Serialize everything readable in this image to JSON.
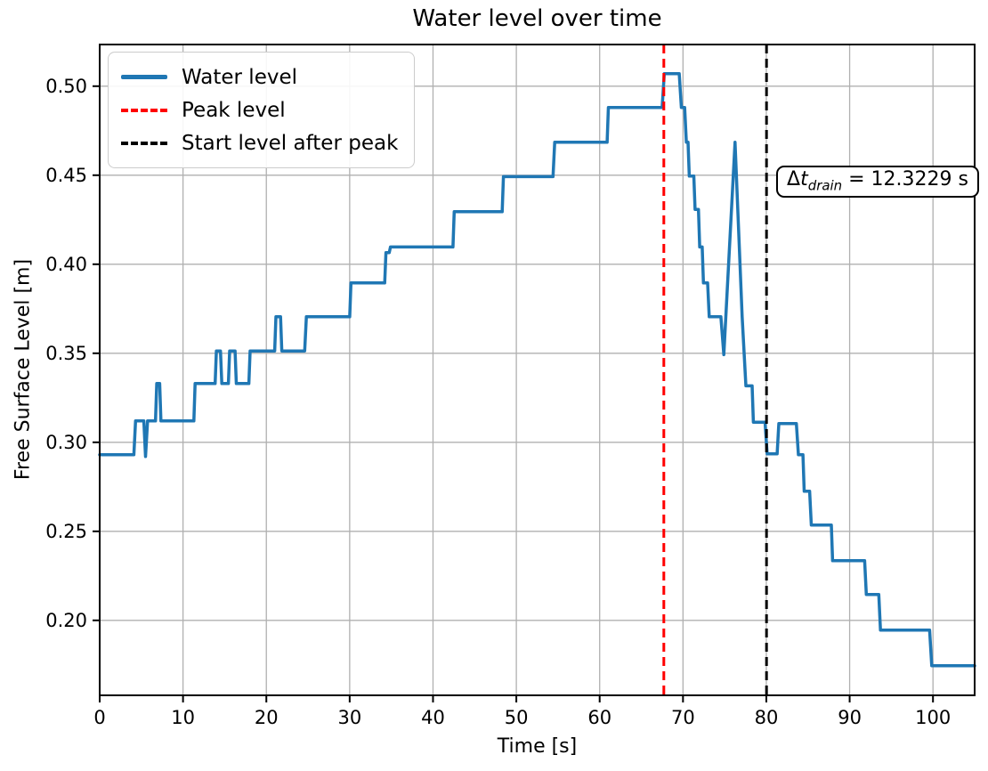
{
  "title": "Water level over time",
  "axes": {
    "xlabel": "Time [s]",
    "ylabel": "Free Surface Level [m]"
  },
  "legend": {
    "items": [
      {
        "label": "Water level",
        "color": "#1f77b4",
        "style": "solid"
      },
      {
        "label": "Peak level",
        "color": "#ff0000",
        "style": "dashed"
      },
      {
        "label": "Start level after peak",
        "color": "#000000",
        "style": "dashed"
      }
    ]
  },
  "annotation": {
    "delta": "Δ",
    "variable": "t",
    "subscript": "drain",
    "rest": " = 12.3229 s"
  },
  "colors": {
    "water_line": "#1f77b4",
    "peak_vline": "#ff0000",
    "start_vline": "#000000",
    "grid": "#b0b0b0",
    "spine": "#000000",
    "background": "#ffffff"
  },
  "chart_data": {
    "type": "line",
    "title": "Water level over time",
    "xlabel": "Time [s]",
    "ylabel": "Free Surface Level [m]",
    "xlim": [
      0,
      105
    ],
    "ylim": [
      0.1579,
      0.5234
    ],
    "x_ticks": [
      0,
      10,
      20,
      30,
      40,
      50,
      60,
      70,
      80,
      90,
      100
    ],
    "y_ticks": [
      0.2,
      0.25,
      0.3,
      0.35,
      0.4,
      0.45,
      0.5
    ],
    "grid": true,
    "legend_position": "upper left",
    "series": [
      {
        "name": "Water level",
        "color": "#1f77b4",
        "style": "solid",
        "points": [
          [
            0,
            0.293
          ],
          [
            4.1,
            0.293
          ],
          [
            4.3,
            0.312
          ],
          [
            5.3,
            0.312
          ],
          [
            5.5,
            0.292
          ],
          [
            5.75,
            0.312
          ],
          [
            6.7,
            0.312
          ],
          [
            6.85,
            0.333
          ],
          [
            7.2,
            0.333
          ],
          [
            7.35,
            0.312
          ],
          [
            11.3,
            0.312
          ],
          [
            11.45,
            0.333
          ],
          [
            13.85,
            0.333
          ],
          [
            14.0,
            0.3513
          ],
          [
            14.5,
            0.3513
          ],
          [
            14.65,
            0.333
          ],
          [
            15.45,
            0.333
          ],
          [
            15.6,
            0.3513
          ],
          [
            16.25,
            0.3513
          ],
          [
            16.4,
            0.333
          ],
          [
            17.9,
            0.333
          ],
          [
            18.05,
            0.3513
          ],
          [
            21.0,
            0.3513
          ],
          [
            21.15,
            0.3705
          ],
          [
            21.7,
            0.3705
          ],
          [
            21.85,
            0.3513
          ],
          [
            24.6,
            0.3513
          ],
          [
            24.8,
            0.3705
          ],
          [
            30.0,
            0.3705
          ],
          [
            30.15,
            0.3895
          ],
          [
            34.2,
            0.3895
          ],
          [
            34.35,
            0.4065
          ],
          [
            34.75,
            0.4065
          ],
          [
            34.9,
            0.4097
          ],
          [
            42.4,
            0.4097
          ],
          [
            42.55,
            0.4295
          ],
          [
            48.3,
            0.4295
          ],
          [
            48.45,
            0.4492
          ],
          [
            54.4,
            0.4492
          ],
          [
            54.6,
            0.4685
          ],
          [
            60.9,
            0.4685
          ],
          [
            61.05,
            0.488
          ],
          [
            67.5,
            0.488
          ],
          [
            67.75,
            0.507
          ],
          [
            69.55,
            0.507
          ],
          [
            69.8,
            0.488
          ],
          [
            70.2,
            0.488
          ],
          [
            70.4,
            0.4685
          ],
          [
            70.6,
            0.4685
          ],
          [
            70.75,
            0.4495
          ],
          [
            71.3,
            0.4495
          ],
          [
            71.45,
            0.4308
          ],
          [
            71.85,
            0.4308
          ],
          [
            72.0,
            0.4097
          ],
          [
            72.3,
            0.4097
          ],
          [
            72.45,
            0.3895
          ],
          [
            72.95,
            0.3895
          ],
          [
            73.15,
            0.3705
          ],
          [
            74.55,
            0.3705
          ],
          [
            74.9,
            0.3492
          ],
          [
            76.25,
            0.4685
          ],
          [
            77.1,
            0.3705
          ],
          [
            77.55,
            0.3317
          ],
          [
            78.3,
            0.3317
          ],
          [
            78.45,
            0.3113
          ],
          [
            79.85,
            0.3113
          ],
          [
            80.1,
            0.2935
          ],
          [
            81.3,
            0.2935
          ],
          [
            81.5,
            0.3105
          ],
          [
            83.6,
            0.3105
          ],
          [
            83.85,
            0.293
          ],
          [
            84.4,
            0.293
          ],
          [
            84.55,
            0.2725
          ],
          [
            85.2,
            0.2725
          ],
          [
            85.4,
            0.2535
          ],
          [
            87.8,
            0.2535
          ],
          [
            87.95,
            0.2335
          ],
          [
            91.8,
            0.2335
          ],
          [
            92.0,
            0.2145
          ],
          [
            93.5,
            0.2145
          ],
          [
            93.7,
            0.1945
          ],
          [
            99.6,
            0.1945
          ],
          [
            99.85,
            0.1745
          ],
          [
            105,
            0.1745
          ]
        ]
      }
    ],
    "vlines": [
      {
        "name": "Peak level",
        "x": 67.7,
        "color": "#ff0000",
        "style": "dashed"
      },
      {
        "name": "Start level after peak",
        "x": 80.0229,
        "color": "#000000",
        "style": "dashed"
      }
    ],
    "annotation": {
      "label": "Δt_drain = 12.3229 s",
      "delta_t_s": 12.3229
    }
  }
}
